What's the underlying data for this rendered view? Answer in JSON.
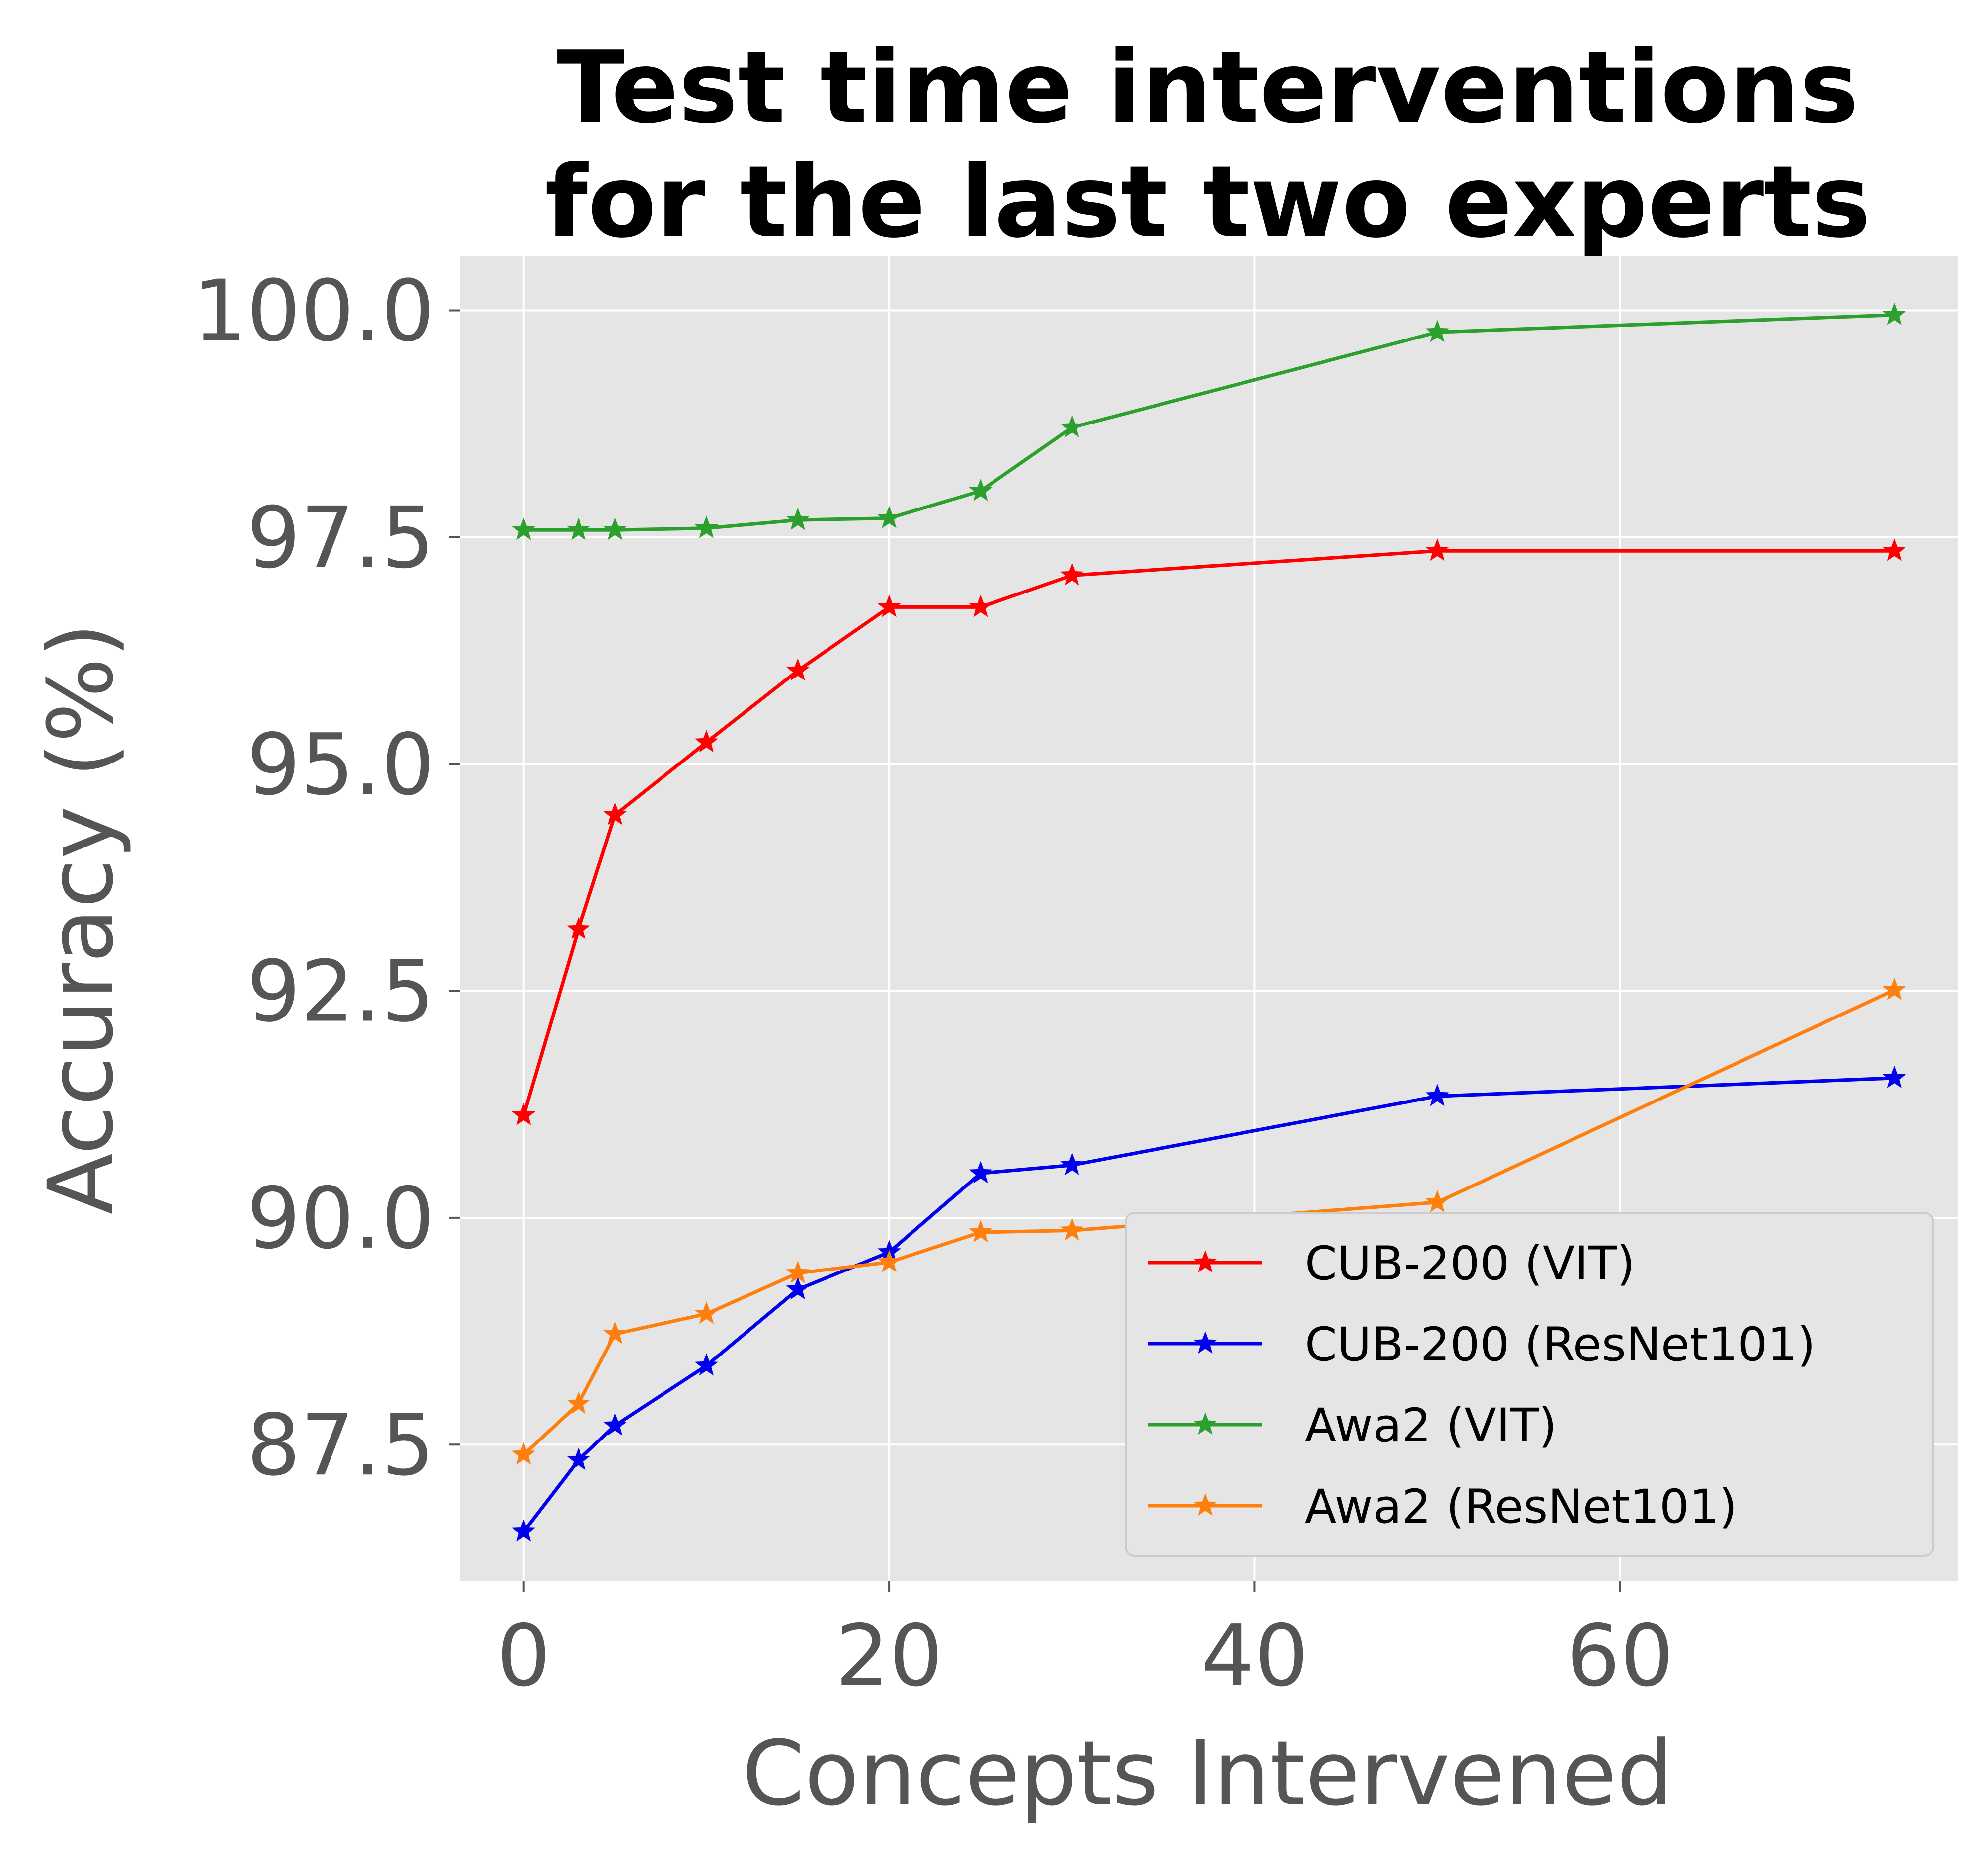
{
  "chart_data": {
    "type": "line",
    "title": [
      "Test time interventions",
      "for the last two experts"
    ],
    "xlabel": "Concepts Intervened",
    "ylabel": "Accuracy (%)",
    "xlim": [
      -3.5,
      78.5
    ],
    "ylim": [
      86.0,
      100.6
    ],
    "xticks": [
      0,
      20,
      40,
      60
    ],
    "yticks": [
      87.5,
      90.0,
      92.5,
      95.0,
      97.5,
      100.0
    ],
    "xtick_labels": [
      "0",
      "20",
      "40",
      "60"
    ],
    "ytick_labels": [
      "87.5",
      "90.0",
      "92.5",
      "95.0",
      "97.5",
      "100.0"
    ],
    "grid": true,
    "background": "#e5e5e5",
    "marker": "star",
    "legend_position": "lower-right",
    "series": [
      {
        "name": "CUB-200 (VIT)",
        "color": "#ff0000",
        "x": [
          0,
          3,
          5,
          10,
          15,
          20,
          25,
          30,
          50,
          75
        ],
        "y": [
          91.13,
          93.18,
          94.44,
          95.24,
          96.03,
          96.73,
          96.73,
          97.08,
          97.35,
          97.35
        ]
      },
      {
        "name": "CUB-200 (ResNet101)",
        "color": "#0000ee",
        "x": [
          0,
          3,
          5,
          10,
          15,
          20,
          25,
          30,
          50,
          75
        ],
        "y": [
          86.54,
          87.33,
          87.71,
          88.37,
          89.21,
          89.62,
          90.49,
          90.58,
          91.34,
          91.54
        ]
      },
      {
        "name": "Awa2 (VIT)",
        "color": "#2ca02c",
        "x": [
          0,
          3,
          5,
          10,
          15,
          20,
          25,
          30,
          50,
          75
        ],
        "y": [
          97.58,
          97.58,
          97.58,
          97.6,
          97.69,
          97.71,
          98.01,
          98.71,
          99.76,
          99.95
        ]
      },
      {
        "name": "Awa2 (ResNet101)",
        "color": "#ff7f0e",
        "x": [
          0,
          3,
          5,
          10,
          15,
          20,
          25,
          30,
          50,
          75
        ],
        "y": [
          87.39,
          87.95,
          88.72,
          88.94,
          89.39,
          89.51,
          89.84,
          89.86,
          90.17,
          92.51
        ]
      }
    ]
  }
}
